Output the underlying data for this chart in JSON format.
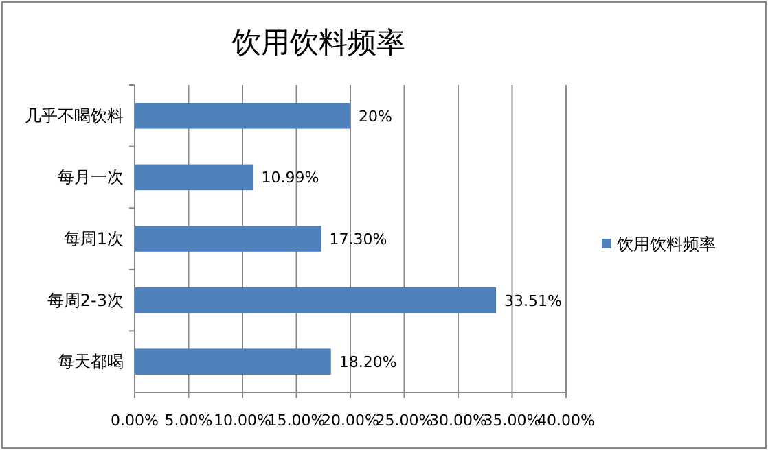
{
  "chart_data": {
    "type": "bar",
    "orientation": "horizontal",
    "title": "饮用饮料频率",
    "categories": [
      "几乎不喝饮料",
      "每月一次",
      "每周1次",
      "每周2-3次",
      "每天都喝"
    ],
    "series": [
      {
        "name": "饮用饮料频率",
        "color": "#4f81bd",
        "values": [
          20,
          10.99,
          17.3,
          33.51,
          18.2
        ],
        "value_labels": [
          "20%",
          "10.99%",
          "17.30%",
          "33.51%",
          "18.20%"
        ]
      }
    ],
    "xlim": [
      0,
      40
    ],
    "xticks": [
      {
        "value": 0,
        "label": "0.00%"
      },
      {
        "value": 5,
        "label": "5.00%"
      },
      {
        "value": 10,
        "label": "10.00%"
      },
      {
        "value": 15,
        "label": "15.00%"
      },
      {
        "value": 20,
        "label": "20.00%"
      },
      {
        "value": 25,
        "label": "25.00%"
      },
      {
        "value": 30,
        "label": "30.00%"
      },
      {
        "value": 35,
        "label": "35.00%"
      },
      {
        "value": 40,
        "label": "40.00%"
      }
    ],
    "grid": "x",
    "legend": "right"
  }
}
